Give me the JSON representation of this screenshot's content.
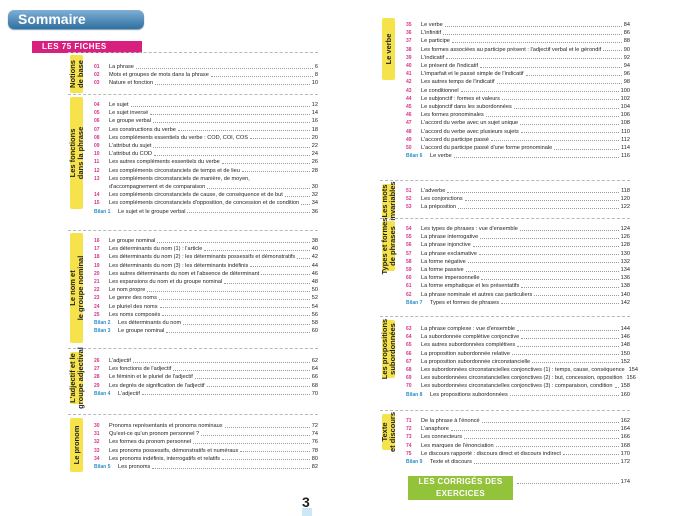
{
  "header": {
    "title": "Sommaire"
  },
  "banners": {
    "fiches": "LES 75 FICHES",
    "corriges": "LES CORRIGÉS DES EXERCICES",
    "corriges_page": "174"
  },
  "footer": {
    "page_number": "3"
  },
  "sections": {
    "notions": {
      "label": "Notions\nde base",
      "entries": [
        {
          "num": "01",
          "text": "La phrase",
          "page": "6"
        },
        {
          "num": "02",
          "text": "Mots et groupes de mots dans la phrase",
          "page": "8"
        },
        {
          "num": "03",
          "text": "Nature et fonction",
          "page": "10"
        }
      ]
    },
    "fonctions": {
      "label": "Les fonctions\ndans la phrase",
      "entries": [
        {
          "num": "04",
          "text": "Le sujet",
          "page": "12"
        },
        {
          "num": "05",
          "text": "Le sujet inversé",
          "page": "14"
        },
        {
          "num": "06",
          "text": "Le groupe verbal",
          "page": "16"
        },
        {
          "num": "07",
          "text": "Les constructions du verbe",
          "page": "18"
        },
        {
          "num": "08",
          "text": "Les compléments essentiels du verbe : COD, COI, COS",
          "page": "20"
        },
        {
          "num": "09",
          "text": "L'attribut du sujet",
          "page": "22"
        },
        {
          "num": "10",
          "text": "L'attribut du COD",
          "page": "24"
        },
        {
          "num": "11",
          "text": "Les autres compléments essentiels du verbe",
          "page": "26"
        },
        {
          "num": "12",
          "text": "Les compléments circonstanciels de temps et de lieu",
          "page": "28"
        },
        {
          "num": "13",
          "text": "Les compléments circonstanciels de manière, de moyen,",
          "page": ""
        },
        {
          "num": "",
          "text": "d'accompagnement et de comparaison",
          "page": "30"
        },
        {
          "num": "14",
          "text": "Les compléments circonstanciels de cause, de conséquence et de but",
          "page": "32"
        },
        {
          "num": "15",
          "text": "Les compléments circonstanciels d'opposition, de concession et de condition",
          "page": "34"
        },
        {
          "num": "Bilan 1",
          "text": "Le sujet et le groupe verbal",
          "page": "36",
          "bilan": true
        }
      ]
    },
    "nom": {
      "label": "Le nom et\nle groupe nominal",
      "entries": [
        {
          "num": "16",
          "text": "Le groupe nominal",
          "page": "38"
        },
        {
          "num": "17",
          "text": "Les déterminants du nom (1) : l'article",
          "page": "40"
        },
        {
          "num": "18",
          "text": "Les déterminants du nom (2) : les déterminants possessifs et démonstratifs",
          "page": "42"
        },
        {
          "num": "19",
          "text": "Les déterminants du nom (3) : les déterminants indéfinis",
          "page": "44"
        },
        {
          "num": "20",
          "text": "Les autres déterminants du nom et l'absence de déterminant",
          "page": "46"
        },
        {
          "num": "21",
          "text": "Les expansions du nom et du groupe nominal",
          "page": "48"
        },
        {
          "num": "22",
          "text": "Le nom propre",
          "page": "50"
        },
        {
          "num": "23",
          "text": "Le genre des noms",
          "page": "52"
        },
        {
          "num": "24",
          "text": "Le pluriel des noms",
          "page": "54"
        },
        {
          "num": "25",
          "text": "Les noms composés",
          "page": "56"
        },
        {
          "num": "Bilan 2",
          "text": "Les déterminants du nom",
          "page": "58",
          "bilan": true
        },
        {
          "num": "Bilan 3",
          "text": "Le groupe nominal",
          "page": "60",
          "bilan": true
        }
      ]
    },
    "adjectif": {
      "label": "L'adjectif et le\ngroupe adjectival",
      "entries": [
        {
          "num": "26",
          "text": "L'adjectif",
          "page": "62"
        },
        {
          "num": "27",
          "text": "Les fonctions de l'adjectif",
          "page": "64"
        },
        {
          "num": "28",
          "text": "Le féminin et le pluriel de l'adjectif",
          "page": "66"
        },
        {
          "num": "29",
          "text": "Les degrés de signification de l'adjectif",
          "page": "68"
        },
        {
          "num": "Bilan 4",
          "text": "L'adjectif",
          "page": "70",
          "bilan": true
        }
      ]
    },
    "pronom": {
      "label": "Le pronom",
      "entries": [
        {
          "num": "30",
          "text": "Pronoms représentants et pronoms nominaux",
          "page": "72"
        },
        {
          "num": "31",
          "text": "Qu'est-ce qu'un pronom personnel ?",
          "page": "74"
        },
        {
          "num": "32",
          "text": "Les formes du pronom personnel",
          "page": "76"
        },
        {
          "num": "33",
          "text": "Les pronoms possessifs, démonstratifs et numéraux",
          "page": "78"
        },
        {
          "num": "34",
          "text": "Les pronoms indéfinis, interrogatifs et relatifs",
          "page": "80"
        },
        {
          "num": "Bilan 5",
          "text": "Les pronoms",
          "page": "82",
          "bilan": true
        }
      ]
    },
    "verbe": {
      "label": "Le verbe",
      "entries": [
        {
          "num": "35",
          "text": "Le verbe",
          "page": "84"
        },
        {
          "num": "36",
          "text": "L'infinitif",
          "page": "86"
        },
        {
          "num": "37",
          "text": "Le participe",
          "page": "88"
        },
        {
          "num": "38",
          "text": "Les formes associées au participe présent : l'adjectif verbal et le gérondif",
          "page": "90"
        },
        {
          "num": "39",
          "text": "L'indicatif",
          "page": "92"
        },
        {
          "num": "40",
          "text": "Le présent de l'indicatif",
          "page": "94"
        },
        {
          "num": "41",
          "text": "L'imparfait et le passé simple de l'indicatif",
          "page": "96"
        },
        {
          "num": "42",
          "text": "Les autres temps de l'indicatif",
          "page": "98"
        },
        {
          "num": "43",
          "text": "Le conditionnel",
          "page": "100"
        },
        {
          "num": "44",
          "text": "Le subjonctif : formes et valeurs",
          "page": "102"
        },
        {
          "num": "45",
          "text": "Le subjonctif dans les subordonnées",
          "page": "104"
        },
        {
          "num": "46",
          "text": "Les formes pronominales",
          "page": "106"
        },
        {
          "num": "47",
          "text": "L'accord du verbe avec un sujet unique",
          "page": "108"
        },
        {
          "num": "48",
          "text": "L'accord du verbe avec plusieurs sujets",
          "page": "110"
        },
        {
          "num": "49",
          "text": "L'accord du participe passé",
          "page": "112"
        },
        {
          "num": "50",
          "text": "L'accord du participe passé d'une forme pronominale",
          "page": "114"
        },
        {
          "num": "Bilan 6",
          "text": "Le verbe",
          "page": "116",
          "bilan": true
        }
      ]
    },
    "invariables": {
      "label": "Les mots\ninvariables",
      "entries": [
        {
          "num": "51",
          "text": "L'adverbe",
          "page": "118"
        },
        {
          "num": "52",
          "text": "Les conjonctions",
          "page": "120"
        },
        {
          "num": "53",
          "text": "La préposition",
          "page": "122"
        }
      ]
    },
    "types": {
      "label": "Types et formes\nde phrases",
      "entries": [
        {
          "num": "54",
          "text": "Les types de phrases : vue d'ensemble",
          "page": "124"
        },
        {
          "num": "55",
          "text": "La phrase interrogative",
          "page": "126"
        },
        {
          "num": "56",
          "text": "La phrase injonctive",
          "page": "128"
        },
        {
          "num": "57",
          "text": "La phrase exclamative",
          "page": "130"
        },
        {
          "num": "58",
          "text": "La forme négative",
          "page": "132"
        },
        {
          "num": "59",
          "text": "La forme passive",
          "page": "134"
        },
        {
          "num": "60",
          "text": "La forme impersonnelle",
          "page": "136"
        },
        {
          "num": "61",
          "text": "La forme emphatique et les présentatifs",
          "page": "138"
        },
        {
          "num": "62",
          "text": "La phrase nominale et autres cas particuliers",
          "page": "140"
        },
        {
          "num": "Bilan 7",
          "text": "Types et formes de phrases",
          "page": "142",
          "bilan": true
        }
      ]
    },
    "subordonnees": {
      "label": "Les propositions\nsubordonnées",
      "entries": [
        {
          "num": "63",
          "text": "La phrase complexe : vue d'ensemble",
          "page": "144"
        },
        {
          "num": "64",
          "text": "La subordonnée complétive conjonctive",
          "page": "146"
        },
        {
          "num": "65",
          "text": "Les autres subordonnées complétives",
          "page": "148"
        },
        {
          "num": "66",
          "text": "La proposition subordonnée relative",
          "page": "150"
        },
        {
          "num": "67",
          "text": "La proposition subordonnée circonstancielle",
          "page": "152"
        },
        {
          "num": "68",
          "text": "Les subordonnées circonstancielles conjonctives (1) : temps, cause, conséquence",
          "page": "154"
        },
        {
          "num": "69",
          "text": "Les subordonnées circonstancielles conjonctives (2) : but, concession, opposition",
          "page": "156"
        },
        {
          "num": "70",
          "text": "Les subordonnées circonstancielles conjonctives (3) : comparaison, condition",
          "page": "158"
        },
        {
          "num": "Bilan 8",
          "text": "Les propositions subordonnées",
          "page": "160",
          "bilan": true
        }
      ]
    },
    "texte": {
      "label": "Texte\net discours",
      "entries": [
        {
          "num": "71",
          "text": "De la phrase à l'énoncé",
          "page": "162"
        },
        {
          "num": "72",
          "text": "L'anaphore",
          "page": "164"
        },
        {
          "num": "73",
          "text": "Les connecteurs",
          "page": "166"
        },
        {
          "num": "74",
          "text": "Les marques de l'énonciation",
          "page": "168"
        },
        {
          "num": "75",
          "text": "Le discours rapporté : discours direct et discours indirect",
          "page": "170"
        },
        {
          "num": "Bilan 9",
          "text": "Texte et discours",
          "page": "172",
          "bilan": true
        }
      ]
    }
  }
}
